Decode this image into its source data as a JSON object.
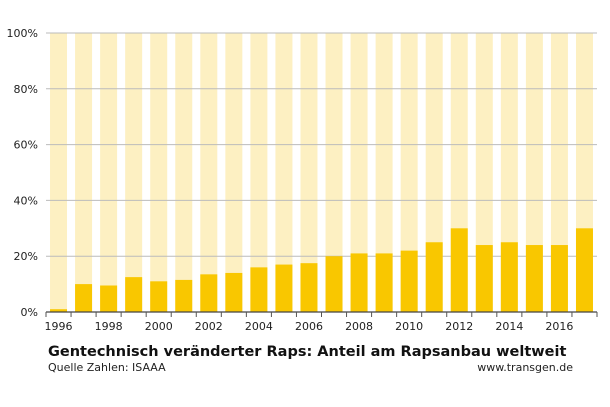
{
  "chart_data": {
    "type": "bar",
    "title": "Gentechnisch veränderter Raps: Anteil am Rapsanbau weltweit",
    "source": "Quelle Zahlen: ISAAA",
    "website": "www.transgen.de",
    "categories": [
      "1996",
      "1997",
      "1998",
      "1999",
      "2000",
      "2001",
      "2002",
      "2003",
      "2004",
      "2005",
      "2006",
      "2007",
      "2008",
      "2009",
      "2010",
      "2011",
      "2012",
      "2013",
      "2014",
      "2015",
      "2016",
      "2017"
    ],
    "x_tick_labels": [
      "1996",
      "1998",
      "2000",
      "2002",
      "2004",
      "2006",
      "2008",
      "2010",
      "2012",
      "2014",
      "2016"
    ],
    "values": [
      1,
      10,
      9.5,
      12.5,
      11,
      11.5,
      13.5,
      14,
      16,
      17,
      17.5,
      20,
      21,
      21,
      22,
      25,
      30,
      24,
      25,
      24,
      24,
      30
    ],
    "ylim": [
      0,
      100
    ],
    "y_ticks": [
      "0%",
      "20%",
      "40%",
      "60%",
      "80%",
      "100%"
    ],
    "grid": true,
    "colors": {
      "bar": "#f9c700",
      "background_bar": "#fdf0c2",
      "grid": "#bbbbbb"
    }
  }
}
